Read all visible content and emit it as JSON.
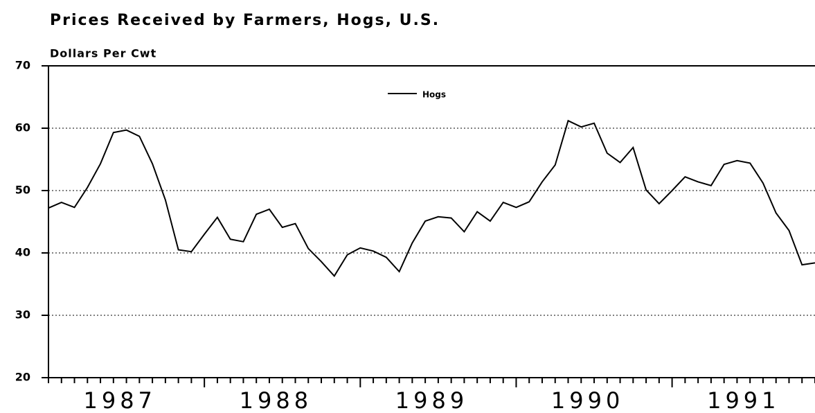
{
  "chart_data": {
    "type": "line",
    "title": "Prices Received by Farmers, Hogs, U.S.",
    "y_label": "Dollars Per Cwt",
    "categories": [
      null,
      null,
      null,
      null,
      null,
      null,
      "1987",
      null,
      null,
      null,
      null,
      null,
      null,
      null,
      null,
      null,
      null,
      null,
      "1988",
      null,
      null,
      null,
      null,
      null,
      null,
      null,
      null,
      null,
      null,
      null,
      "1989",
      null,
      null,
      null,
      null,
      null,
      null,
      null,
      null,
      null,
      null,
      null,
      "1990",
      null,
      null,
      null,
      null,
      null,
      null,
      null,
      null,
      null,
      null,
      null,
      "1991",
      null,
      null,
      null,
      null,
      null
    ],
    "series": [
      {
        "name": "Hogs",
        "color": "#000000",
        "values": [
          47.2,
          48.1,
          47.3,
          50.5,
          54.3,
          59.3,
          59.7,
          58.7,
          54.3,
          48.5,
          40.5,
          40.2,
          43.0,
          45.7,
          42.2,
          41.8,
          46.2,
          47.0,
          44.1,
          44.7,
          40.7,
          38.6,
          36.3,
          39.7,
          40.8,
          40.3,
          39.3,
          37.0,
          41.6,
          45.1,
          45.8,
          45.6,
          43.4,
          46.6,
          45.1,
          48.1,
          47.3,
          48.2,
          51.4,
          54.1,
          61.2,
          60.2,
          60.8,
          56.0,
          54.5,
          56.9,
          50.1,
          47.9,
          50.0,
          52.2,
          51.4,
          50.8,
          54.2,
          54.8,
          54.4,
          51.2,
          46.4,
          43.6,
          38.1,
          38.4
        ]
      }
    ],
    "ylim": [
      20,
      70
    ],
    "yticks": [
      20,
      30,
      40,
      50,
      60,
      70
    ],
    "grid": true
  }
}
